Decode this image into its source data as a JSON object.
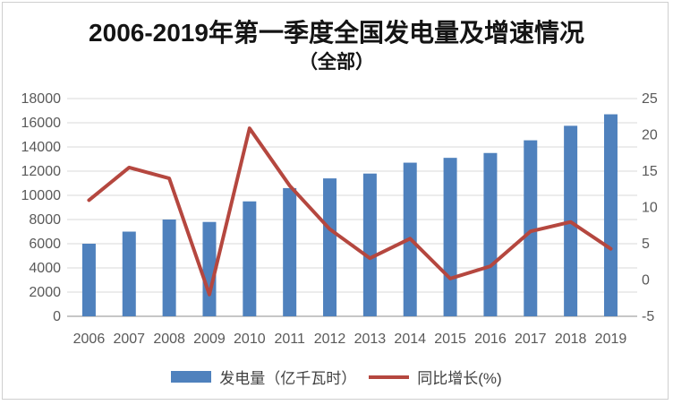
{
  "title": "2006-2019年第一季度全国发电量及增速情况",
  "subtitle": "（全部）",
  "legend": {
    "bar_label": "发电量（亿千瓦时）",
    "line_label": "同比增长(%)"
  },
  "colors": {
    "bar": "#4F81BD",
    "line": "#B5473F",
    "grid": "#D9D9D9",
    "axis_line": "#C6C6C6",
    "axis_text": "#595959",
    "title_text": "#141414"
  },
  "chart_data": {
    "type": "bar",
    "subtype": "bar+line combo",
    "categories": [
      "2006",
      "2007",
      "2008",
      "2009",
      "2010",
      "2011",
      "2012",
      "2013",
      "2014",
      "2015",
      "2016",
      "2017",
      "2018",
      "2019"
    ],
    "series": [
      {
        "name": "发电量（亿千瓦时）",
        "type": "bar",
        "axis": "left",
        "values": [
          6000,
          7000,
          8000,
          7800,
          9500,
          10600,
          11400,
          11800,
          12700,
          13100,
          13500,
          14550,
          15750,
          16700
        ]
      },
      {
        "name": "同比增长(%)",
        "type": "line",
        "axis": "right",
        "values": [
          11.0,
          15.5,
          14.0,
          -2.0,
          20.9,
          13.0,
          7.0,
          3.0,
          5.7,
          0.2,
          1.9,
          6.7,
          8.0,
          4.3
        ]
      }
    ],
    "title": "2006-2019年第一季度全国发电量及增速情况（全部）",
    "xlabel": "",
    "ylabel_left": "发电量（亿千瓦时）",
    "ylabel_right": "同比增长(%)",
    "left_axis": {
      "min": 0,
      "max": 18000,
      "step": 2000
    },
    "right_axis": {
      "min": -5,
      "max": 25,
      "step": 5
    },
    "grid": true,
    "legend_position": "bottom"
  }
}
